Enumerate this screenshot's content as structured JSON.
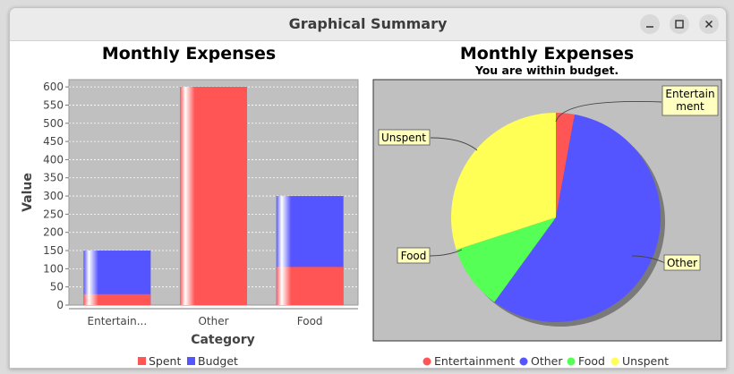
{
  "window": {
    "title": "Graphical Summary"
  },
  "bar_chart": {
    "title": "Monthly Expenses",
    "xlabel": "Category",
    "ylabel": "Value",
    "category_labels": [
      "Entertain...",
      "Other",
      "Food"
    ],
    "legend": [
      "Spent",
      "Budget"
    ]
  },
  "pie_chart": {
    "title": "Monthly Expenses",
    "subtitle": "You are within budget.",
    "slice_labels": [
      "Entertain\nment",
      "Other",
      "Food",
      "Unspent"
    ],
    "legend": [
      "Entertainment",
      "Other",
      "Food",
      "Unspent"
    ]
  },
  "chart_data": [
    {
      "type": "bar",
      "title": "Monthly Expenses",
      "xlabel": "Category",
      "ylabel": "Value",
      "categories": [
        "Entertainment",
        "Other",
        "Food"
      ],
      "series": [
        {
          "name": "Spent",
          "values": [
            30,
            600,
            105
          ],
          "color": "#ff5555"
        },
        {
          "name": "Budget",
          "values": [
            150,
            600,
            300
          ],
          "color": "#5555ff"
        }
      ],
      "ylim": [
        0,
        620
      ],
      "yticks": [
        0,
        50,
        100,
        150,
        200,
        250,
        300,
        350,
        400,
        450,
        500,
        550,
        600
      ],
      "grid": true,
      "legend_position": "bottom"
    },
    {
      "type": "pie",
      "title": "Monthly Expenses",
      "subtitle": "You are within budget.",
      "categories": [
        "Entertainment",
        "Other",
        "Food",
        "Unspent"
      ],
      "values": [
        30,
        600,
        105,
        315
      ],
      "colors": [
        "#ff5555",
        "#5555ff",
        "#55ff55",
        "#ffff55"
      ],
      "legend_position": "bottom"
    }
  ]
}
